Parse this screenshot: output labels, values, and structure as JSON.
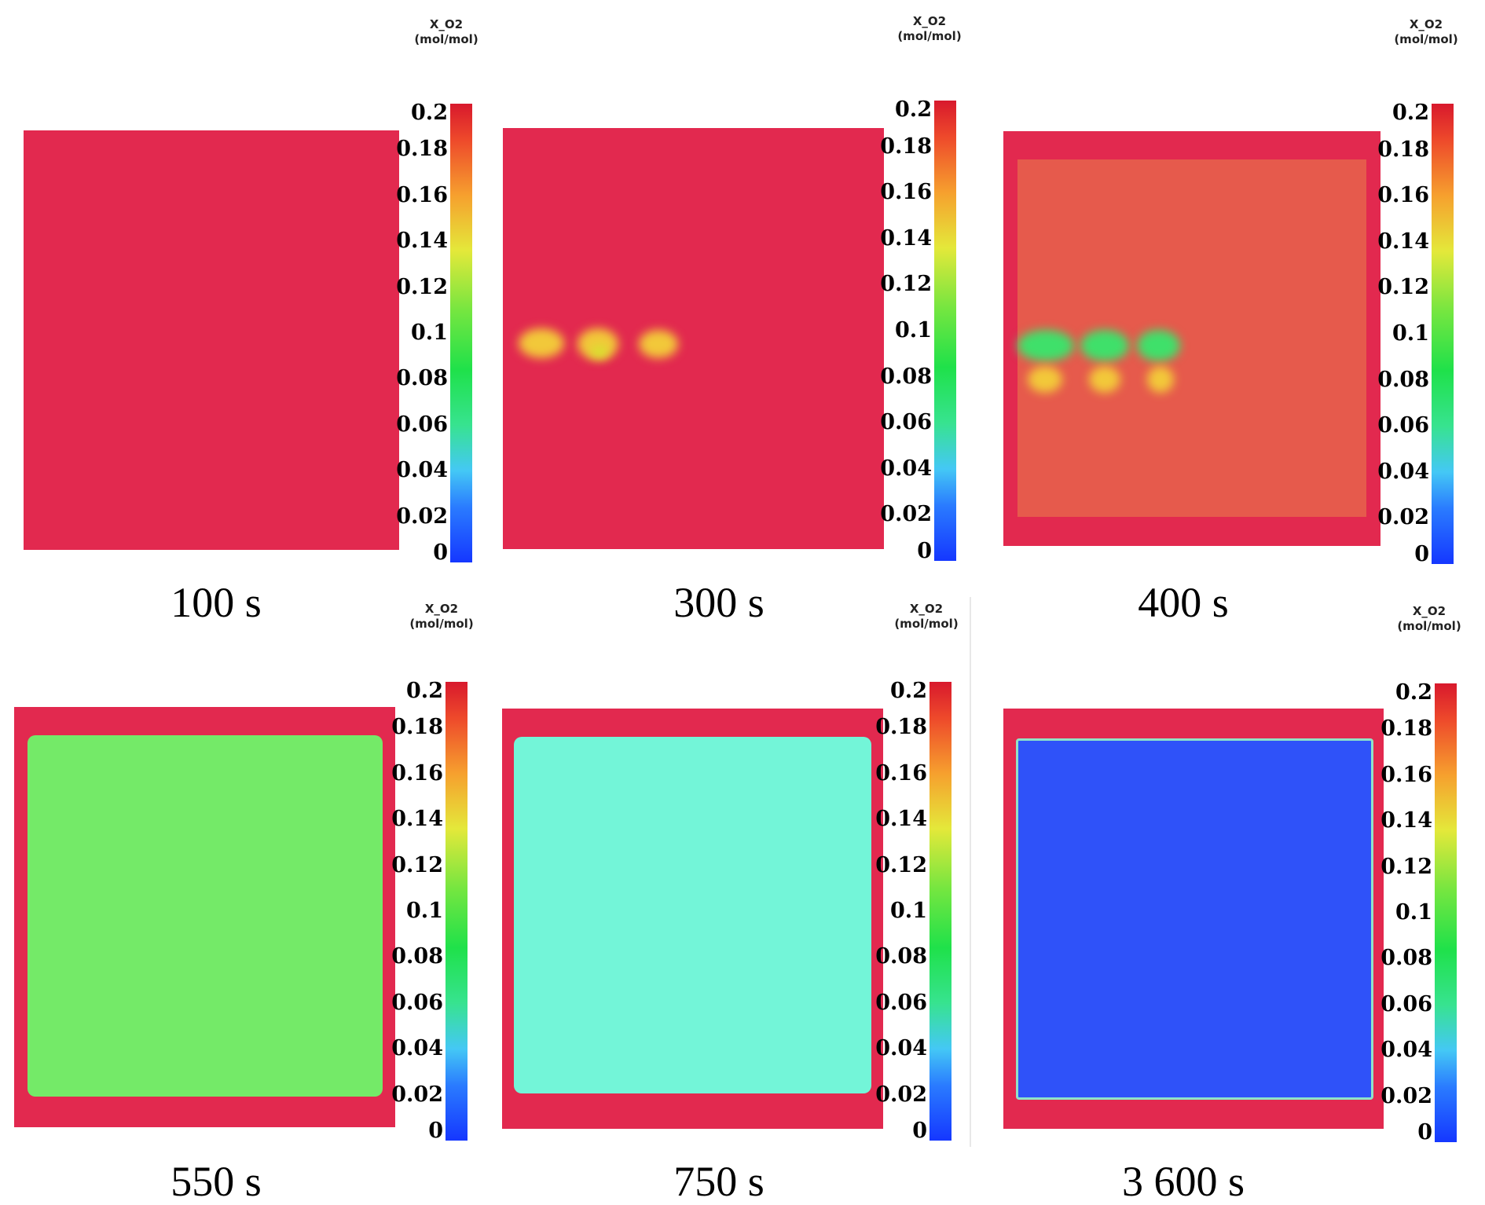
{
  "colorbar": {
    "title_line1": "X_O2",
    "title_line2": "(mol/mol)",
    "ticks": [
      "0.2",
      "0.18",
      "0.16",
      "0.14",
      "0.12",
      "0.1",
      "0.08",
      "0.06",
      "0.04",
      "0.02",
      "0"
    ]
  },
  "panels": [
    {
      "time": "100 s",
      "fill_color": "#e2294f",
      "o2_level": 0.21
    },
    {
      "time": "300 s",
      "fill_color": "#e2294f",
      "o2_level": 0.21
    },
    {
      "time": "400 s",
      "fill_color": "#e65a4c",
      "o2_level": 0.19
    },
    {
      "time": "550 s",
      "fill_color": "#74ea68",
      "o2_level": 0.11
    },
    {
      "time": "750 s",
      "fill_color": "#73f5d8",
      "o2_level": 0.06
    },
    {
      "time": "3 600 s",
      "fill_color": "#2f52f9",
      "o2_level": 0.0
    }
  ],
  "colors": {
    "outer_red": "#e2294f",
    "hotspot_yellow": "#f2c83a",
    "hotspot_green": "#3fe06a"
  }
}
